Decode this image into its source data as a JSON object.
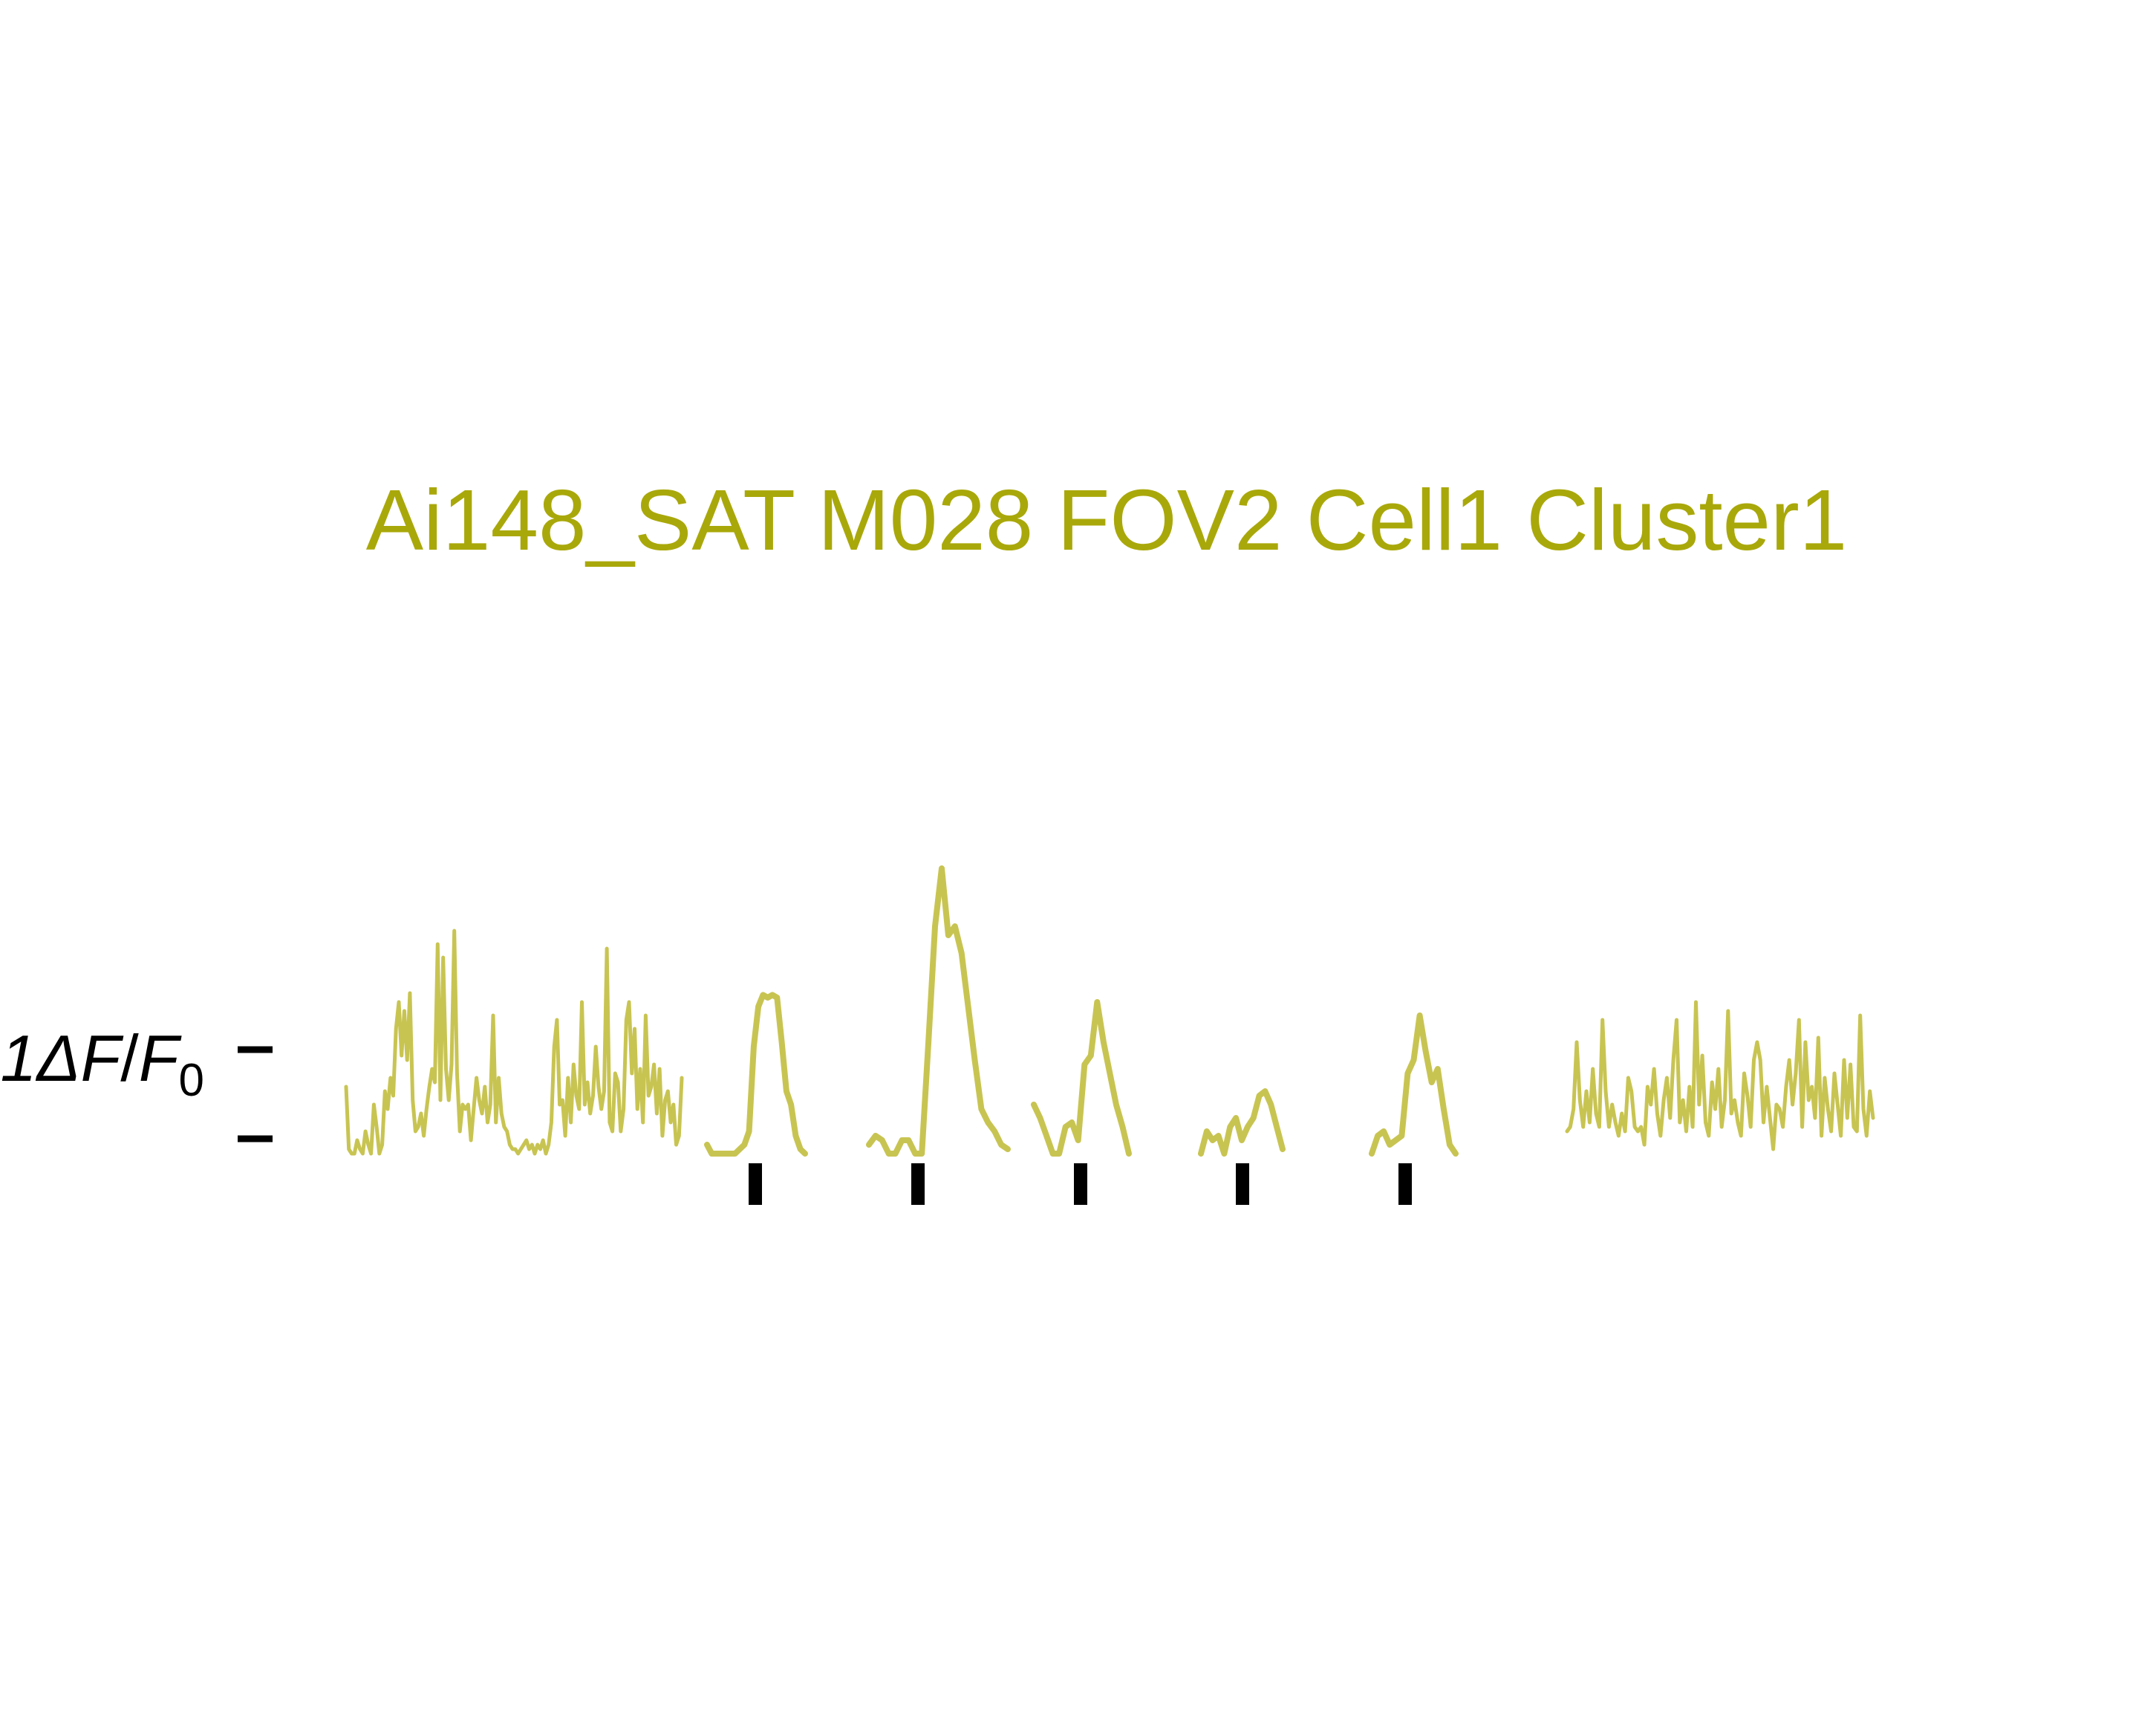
{
  "chart_data": {
    "type": "line",
    "title": "Ai148_SAT M028 FOV2 Cell1 Cluster1",
    "ylabel": "1ΔF/F0",
    "ylabel_parts": {
      "prefix": "1Δ",
      "f1": "F",
      "slash": "/",
      "f2": "F",
      "sub": "0"
    },
    "ylim": [
      0,
      3.2
    ],
    "scale_bar_ticks": [
      0,
      1
    ],
    "stimulus_markers": [
      0,
      1,
      2,
      3,
      4
    ],
    "grid": false,
    "legend": "none",
    "trace_color": "#c8c452",
    "title_color": "#a9a80a",
    "marker_color": "#000000",
    "segments": [
      {
        "kind": "baseline",
        "values": [
          0.75,
          0.05,
          0.0,
          0.0,
          0.15,
          0.05,
          0.0,
          0.25,
          0.1,
          0.0,
          0.55,
          0.3,
          0.0,
          0.1,
          0.7,
          0.5,
          0.85,
          0.65,
          1.4,
          1.7,
          1.1,
          1.6,
          1.05,
          1.8,
          0.6,
          0.25,
          0.3,
          0.45,
          0.2,
          0.5,
          0.75,
          0.95,
          0.8,
          2.35,
          0.6,
          2.2,
          0.95,
          0.6,
          1.0,
          2.5,
          0.9,
          0.25,
          0.55,
          0.5,
          0.55,
          0.15,
          0.5,
          0.85,
          0.6,
          0.45,
          0.75,
          0.35,
          0.55,
          1.55,
          0.35,
          0.85,
          0.45,
          0.3,
          0.25,
          0.1,
          0.05,
          0.05,
          0.0,
          0.05,
          0.1,
          0.15,
          0.05,
          0.1,
          0.0,
          0.1,
          0.05,
          0.15,
          0.0,
          0.1,
          0.35,
          1.2,
          1.5,
          0.55,
          0.6,
          0.2,
          0.85,
          0.35,
          1.0,
          0.65,
          0.5,
          1.7,
          0.55,
          0.8,
          0.45,
          0.65,
          1.2,
          0.75,
          0.5,
          0.7,
          2.3,
          0.35,
          0.25,
          0.9,
          0.8,
          0.25,
          0.5,
          1.5,
          1.7,
          0.9,
          1.4,
          0.5,
          0.95,
          0.35,
          1.55,
          0.65,
          0.75,
          1.0,
          0.45,
          0.95,
          0.2,
          0.6,
          0.7,
          0.35,
          0.55,
          0.1,
          0.2,
          0.85
        ]
      },
      {
        "kind": "trial",
        "values": [
          0.1,
          0.0,
          0.0,
          0.0,
          0.0,
          0.0,
          0.0,
          0.05,
          0.1,
          0.25,
          1.2,
          1.65,
          1.78,
          1.75,
          1.78,
          1.75,
          1.25,
          0.7,
          0.55,
          0.2,
          0.05,
          0.0
        ]
      },
      {
        "kind": "trial",
        "values": [
          0.1,
          0.2,
          0.15,
          0.0,
          0.0,
          0.15,
          0.15,
          0.0,
          0.0,
          1.25,
          2.55,
          3.2,
          2.45,
          2.55,
          2.25,
          1.65,
          1.05,
          0.5,
          0.35,
          0.25,
          0.1,
          0.05
        ]
      },
      {
        "kind": "trial",
        "values": [
          0.55,
          0.4,
          0.2,
          0.0,
          0.0,
          0.3,
          0.35,
          0.15,
          1.0,
          1.1,
          1.7,
          1.25,
          0.9,
          0.55,
          0.3,
          0.0
        ]
      },
      {
        "kind": "trial",
        "values": [
          0.0,
          0.25,
          0.15,
          0.2,
          0.0,
          0.3,
          0.4,
          0.15,
          0.3,
          0.4,
          0.65,
          0.7,
          0.55,
          0.3,
          0.05
        ]
      },
      {
        "kind": "trial",
        "values": [
          0.0,
          0.2,
          0.25,
          0.1,
          0.15,
          0.2,
          0.9,
          1.05,
          1.55,
          1.15,
          0.8,
          0.95,
          0.5,
          0.1,
          0.0
        ]
      },
      {
        "kind": "baseline",
        "values": [
          0.25,
          0.3,
          0.5,
          1.25,
          0.6,
          0.3,
          0.7,
          0.35,
          0.95,
          0.45,
          0.3,
          1.5,
          0.7,
          0.3,
          0.55,
          0.35,
          0.2,
          0.45,
          0.25,
          0.85,
          0.7,
          0.3,
          0.25,
          0.3,
          0.1,
          0.75,
          0.55,
          0.95,
          0.45,
          0.2,
          0.6,
          0.85,
          0.4,
          1.05,
          1.5,
          0.35,
          0.6,
          0.25,
          0.75,
          0.3,
          1.7,
          0.55,
          1.1,
          0.35,
          0.2,
          0.8,
          0.5,
          0.95,
          0.3,
          0.6,
          1.6,
          0.45,
          0.6,
          0.35,
          0.2,
          0.9,
          0.65,
          0.3,
          1.05,
          1.25,
          1.05,
          0.35,
          0.75,
          0.4,
          0.05,
          0.55,
          0.5,
          0.3,
          0.75,
          1.05,
          0.55,
          0.9,
          1.5,
          0.3,
          1.25,
          0.6,
          0.75,
          0.4,
          1.3,
          0.2,
          0.85,
          0.5,
          0.25,
          0.9,
          0.55,
          0.2,
          1.05,
          0.4,
          1.0,
          0.3,
          0.25,
          1.55,
          0.5,
          0.2,
          0.7,
          0.4
        ]
      }
    ]
  }
}
